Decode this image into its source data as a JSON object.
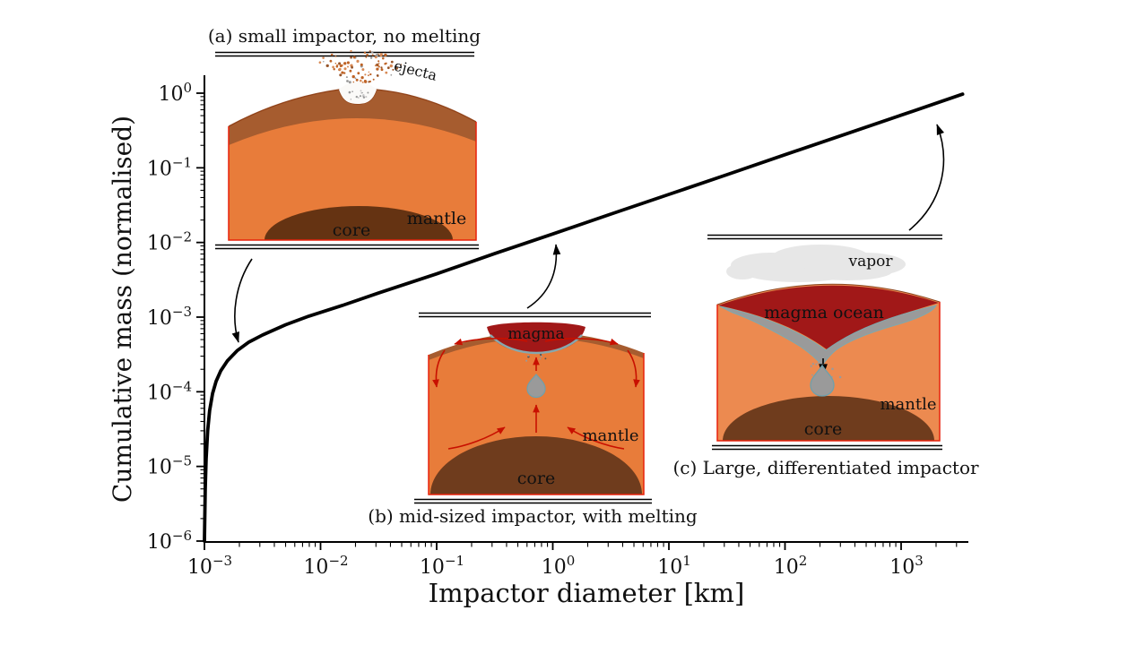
{
  "figure": {
    "y_axis_label": "Cumulative mass (normalised)",
    "x_axis_label": "Impactor diameter [km]",
    "insets": {
      "a": {
        "title": "(a) small impactor, no melting",
        "ejecta_label": "ejecta",
        "mantle_label": "mantle",
        "core_label": "core"
      },
      "b": {
        "caption": "(b) mid-sized impactor, with melting",
        "magma_label": "magma",
        "mantle_label": "mantle",
        "core_label": "core"
      },
      "c": {
        "caption": "(c) Large, differentiated impactor",
        "vapor_label": "vapor",
        "magma_ocean_label": "magma ocean",
        "mantle_label": "mantle",
        "core_label": "core"
      }
    },
    "colors": {
      "curve": "#000000",
      "mantle_orange": "#E87C3A",
      "mantle_orange_light": "#EC8A50",
      "crust_brown": "#A65C2F",
      "core_brown_dark": "#653312",
      "core_brown": "#6F3C1D",
      "magma_red": "#A11818",
      "metal_gray": "#9A9A9A",
      "metal_rim_teal": "#6FA0AC",
      "vapor_gray": "#E7E7E7",
      "convection_red": "#C81000",
      "inset_border_red": "#E8210B",
      "ejecta_dot": "#BE6326"
    }
  },
  "chart_data": {
    "type": "line",
    "title": "",
    "xlabel": "Impactor diameter [km]",
    "ylabel": "Cumulative mass (normalised)",
    "xscale": "log",
    "yscale": "log",
    "xlim": [
      0.001,
      3600
    ],
    "ylim": [
      1e-06,
      1.3
    ],
    "grid": false,
    "legend": null,
    "x_tick_exponents": [
      -3,
      -2,
      -1,
      0,
      1,
      2,
      3
    ],
    "y_tick_exponents": [
      0,
      -1,
      -2,
      -3,
      -4,
      -5,
      -6
    ],
    "series": [
      {
        "name": "cumulative mass vs impactor diameter",
        "color": "#000000",
        "points": [
          [
            0.001,
            1e-06
          ],
          [
            0.001016,
            5e-06
          ],
          [
            0.001035,
            1.26e-05
          ],
          [
            0.001066,
            3e-05
          ],
          [
            0.001109,
            5.6e-05
          ],
          [
            0.001175,
            9.5e-05
          ],
          [
            0.00126,
            0.000138
          ],
          [
            0.00138,
            0.00019
          ],
          [
            0.00158,
            0.00026
          ],
          [
            0.00191,
            0.000355
          ],
          [
            0.0024,
            0.00046
          ],
          [
            0.00316,
            0.000575
          ],
          [
            0.00501,
            0.00079
          ],
          [
            0.00794,
            0.00103
          ],
          [
            0.0158,
            0.00145
          ],
          [
            0.0316,
            0.0021
          ],
          [
            0.1,
            0.0038
          ],
          [
            0.316,
            0.0071
          ],
          [
            1.0,
            0.013
          ],
          [
            3.16,
            0.024
          ],
          [
            10,
            0.044
          ],
          [
            31.6,
            0.081
          ],
          [
            100,
            0.15
          ],
          [
            316,
            0.275
          ],
          [
            1000,
            0.507
          ],
          [
            3388,
            0.97
          ]
        ]
      }
    ],
    "annotations": [
      {
        "label": "(a) small impactor, no melting",
        "points_at_xy": [
          0.002,
          0.0004
        ]
      },
      {
        "label": "(b) mid-sized impactor, with melting",
        "points_at_xy": [
          1.07,
          0.0102
        ]
      },
      {
        "label": "(c) Large, differentiated impactor",
        "points_at_xy": [
          2000,
          0.44
        ]
      }
    ]
  }
}
